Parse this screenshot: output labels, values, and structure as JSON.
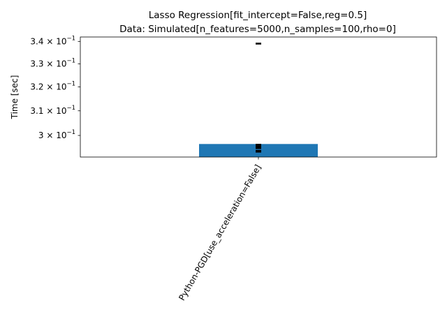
{
  "chart_data": {
    "type": "bar",
    "title": [
      "Lasso Regression[fit_intercept=False,reg=0.5]",
      "Data: Simulated[n_features=5000,n_samples=100,rho=0]"
    ],
    "ylabel": "Time [sec]",
    "xlabel": "",
    "yscale": "log",
    "ylim": [
      0.2915,
      0.342
    ],
    "yticks": [
      {
        "value": 0.3,
        "mantissa": "3",
        "base": "10",
        "exp": "−1"
      },
      {
        "value": 0.31,
        "mantissa": "3.1",
        "base": "10",
        "exp": "−1"
      },
      {
        "value": 0.32,
        "mantissa": "3.2",
        "base": "10",
        "exp": "−1"
      },
      {
        "value": 0.33,
        "mantissa": "3.3",
        "base": "10",
        "exp": "−1"
      },
      {
        "value": 0.34,
        "mantissa": "3.4",
        "base": "10",
        "exp": "−1"
      }
    ],
    "categories": [
      "Python-PGD[use_acceleration=False]"
    ],
    "values": [
      0.2966
    ],
    "run_points": [
      0.2963,
      0.2956,
      0.295,
      0.2939,
      0.2936,
      0.339
    ],
    "colors": {
      "bar": "#1f77b4",
      "points": "#000000",
      "axes": "#000000"
    }
  }
}
